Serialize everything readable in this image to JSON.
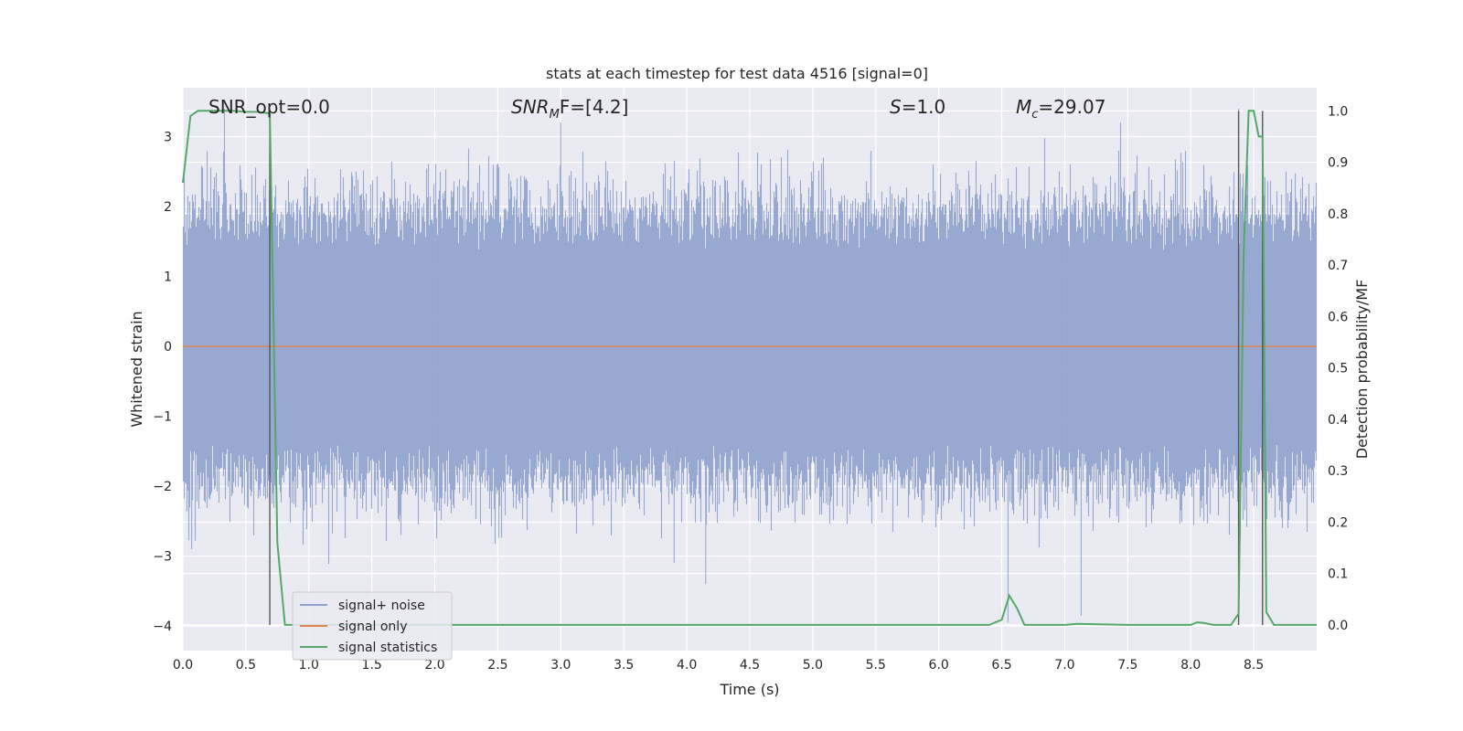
{
  "chart_data": {
    "type": "line",
    "title": "stats at each timestep for test data 4516 [signal=0]",
    "xlabel": "Time (s)",
    "ylabel": "Whitened strain",
    "y2label": "Detection probability/MF",
    "xlim": [
      0,
      9.0
    ],
    "ylim": [
      -4.35,
      3.7
    ],
    "y2lim": [
      -0.05,
      1.045
    ],
    "x_ticks": [
      0.0,
      0.5,
      1.0,
      1.5,
      2.0,
      2.5,
      3.0,
      3.5,
      4.0,
      4.5,
      5.0,
      5.5,
      6.0,
      6.5,
      7.0,
      7.5,
      8.0,
      8.5
    ],
    "x_tick_labels": [
      "0.0",
      "0.5",
      "1.0",
      "1.5",
      "2.0",
      "2.5",
      "3.0",
      "3.5",
      "4.0",
      "4.5",
      "5.0",
      "5.5",
      "6.0",
      "6.5",
      "7.0",
      "7.5",
      "8.0",
      "8.5"
    ],
    "y_ticks": [
      -4,
      -3,
      -2,
      -1,
      0,
      1,
      2,
      3
    ],
    "y_tick_labels": [
      "−4",
      "−3",
      "−2",
      "−1",
      "0",
      "1",
      "2",
      "3"
    ],
    "y2_ticks": [
      0.0,
      0.1,
      0.2,
      0.3,
      0.4,
      0.5,
      0.6,
      0.7,
      0.8,
      0.9,
      1.0
    ],
    "y2_tick_labels": [
      "0.0",
      "0.1",
      "0.2",
      "0.3",
      "0.4",
      "0.5",
      "0.6",
      "0.7",
      "0.8",
      "0.9",
      "1.0"
    ],
    "grid": true,
    "legend_position": "lower-left",
    "annotations": {
      "snr_opt": "SNR_opt=0.0",
      "snr_mf_base": "SNR",
      "snr_mf_sub": "M",
      "snr_mf_tail": "F=[4.2]",
      "s_label": "S",
      "s_value": "=1.0",
      "mc_base": "M",
      "mc_sub": "c",
      "mc_value": "=29.07"
    },
    "vertical_markers": [
      0.69,
      8.38,
      8.57
    ],
    "colors": {
      "noise": "#8ea2cc",
      "signal": "#dd8452",
      "stats": "#55a868",
      "marker": "#555555",
      "background": "#eaeaf2",
      "grid": "#ffffff"
    },
    "series": [
      {
        "name": "signal+ noise",
        "description_amplitude": 1.9,
        "peaks": [
          {
            "x": 0.33,
            "y": 3.4
          },
          {
            "x": 3.0,
            "y": 3.2
          },
          {
            "x": 6.55,
            "y": -3.95
          },
          {
            "x": 7.13,
            "y": -3.85
          },
          {
            "x": 4.15,
            "y": -3.4
          },
          {
            "x": 3.9,
            "y": -3.1
          },
          {
            "x": 8.38,
            "y": 3.4
          },
          {
            "x": 0.07,
            "y": -2.9
          }
        ]
      },
      {
        "name": "signal only",
        "x": [
          0.0,
          9.0
        ],
        "y": [
          0.0,
          0.0
        ]
      },
      {
        "name": "signal statistics",
        "axis": "right",
        "x": [
          0.0,
          0.06,
          0.12,
          0.2,
          0.3,
          0.4,
          0.5,
          0.6,
          0.69,
          0.75,
          0.81,
          1.0,
          2.0,
          3.0,
          4.0,
          5.0,
          6.0,
          6.4,
          6.5,
          6.56,
          6.62,
          6.68,
          6.8,
          7.0,
          7.1,
          7.5,
          8.0,
          8.05,
          8.1,
          8.18,
          8.25,
          8.32,
          8.38,
          8.42,
          8.46,
          8.5,
          8.54,
          8.57,
          8.6,
          8.66,
          8.8,
          9.0
        ],
        "y": [
          0.86,
          0.99,
          1.0,
          1.0,
          1.0,
          1.0,
          0.998,
          0.998,
          0.995,
          0.16,
          0.0,
          0.0,
          0.0,
          0.0,
          0.0,
          0.0,
          0.0,
          0.0,
          0.01,
          0.057,
          0.033,
          0.0,
          0.0,
          0.0,
          0.002,
          0.0,
          0.0,
          0.005,
          0.004,
          0.0,
          0.0,
          0.0,
          0.022,
          0.72,
          1.0,
          1.0,
          0.95,
          0.95,
          0.025,
          0.0,
          0.0,
          0.0
        ]
      }
    ]
  }
}
